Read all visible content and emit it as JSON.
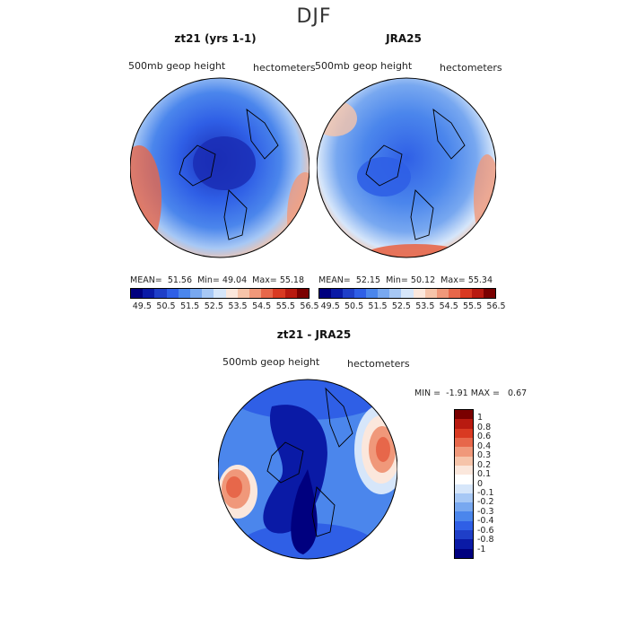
{
  "title": "DJF",
  "panels": [
    {
      "title": "zt21 (yrs 1-1)",
      "var_label": "500mb geop height",
      "units_label": "hectometers",
      "stats": {
        "mean_label": "MEAN=",
        "mean": "51.56",
        "min_label": "Min=",
        "min": "49.04",
        "max_label": "Max=",
        "max": "55.18"
      }
    },
    {
      "title": "JRA25",
      "var_label": "500mb geop height",
      "units_label": "hectometers",
      "stats": {
        "mean_label": "MEAN=",
        "mean": "52.15",
        "min_label": "Min=",
        "min": "50.12",
        "max_label": "Max=",
        "max": "55.34"
      }
    },
    {
      "title": "zt21 - JRA25",
      "var_label": "500mb geop height",
      "units_label": "hectometers",
      "stats": {
        "min_label": "MIN =",
        "min": "-1.91",
        "max_label": "MAX =",
        "max": "0.67"
      }
    }
  ],
  "colorbar_top": {
    "ticks": [
      "49.5",
      "50.5",
      "51.5",
      "52.5",
      "53.5",
      "54.5",
      "55.5",
      "56.5"
    ],
    "colors": [
      "#00007f",
      "#0a1aa6",
      "#1f3fc8",
      "#2f5fe6",
      "#4b86ec",
      "#78a8f0",
      "#a7c8f5",
      "#d6e6fa",
      "#fbe7dc",
      "#f6c4aa",
      "#f0987a",
      "#e7674a",
      "#d93a22",
      "#b81a10",
      "#7a0000"
    ]
  },
  "colorbar_diff": {
    "ticks": [
      "1",
      "0.8",
      "0.6",
      "0.4",
      "0.3",
      "0.2",
      "0.1",
      "0",
      "-0.1",
      "-0.2",
      "-0.3",
      "-0.4",
      "-0.6",
      "-0.8",
      "-1"
    ],
    "colors": [
      "#7a0000",
      "#b81a10",
      "#d93a22",
      "#e7674a",
      "#f0987a",
      "#f6c4aa",
      "#fbe7dc",
      "#ffffff",
      "#d6e6fa",
      "#a7c8f5",
      "#78a8f0",
      "#4b86ec",
      "#2f5fe6",
      "#1f3fc8",
      "#0a1aa6",
      "#00007f"
    ]
  }
}
